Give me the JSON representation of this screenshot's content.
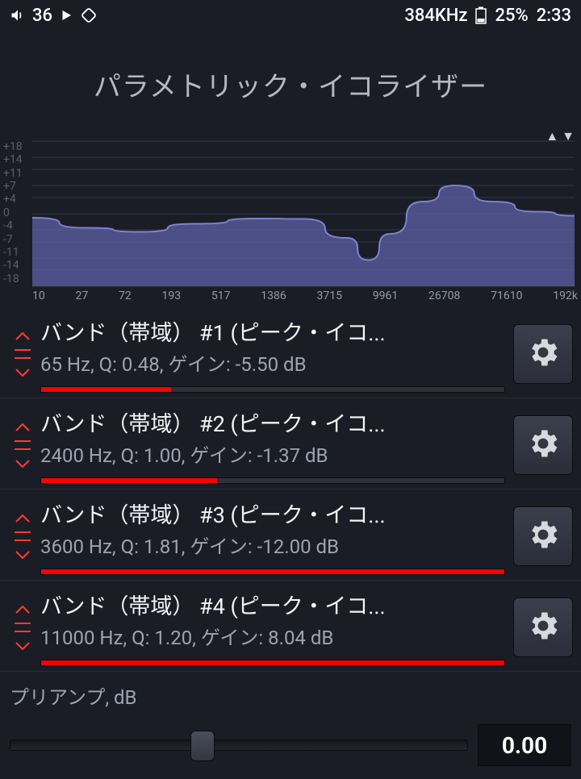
{
  "status": {
    "volume": "36",
    "sample_rate": "384KHz",
    "battery": "25%",
    "time": "2:33"
  },
  "title": "パラメトリック・イコライザー",
  "chart": {
    "type": "area",
    "background_color": "#1a1d26",
    "fill_color": "#5a5ea0",
    "fill_opacity": 0.78,
    "stroke_color": "#7e82d0",
    "grid_color": "#333745",
    "y_label_color": "#5b5f6e",
    "x_label_color": "#969aa6",
    "y_ticks": [
      "+18",
      "+14",
      "+11",
      "+7",
      "+4",
      "0",
      "-4",
      "-7",
      "-11",
      "-14",
      "-18"
    ],
    "x_ticks": [
      "10",
      "27",
      "72",
      "193",
      "517",
      "1386",
      "3715",
      "9961",
      "26708",
      "71610",
      "192k"
    ],
    "ylim": [
      -18,
      18
    ],
    "curve": [
      {
        "x": 0.0,
        "y": -1.0
      },
      {
        "x": 0.1,
        "y": -3.5
      },
      {
        "x": 0.2,
        "y": -4.5
      },
      {
        "x": 0.3,
        "y": -2.5
      },
      {
        "x": 0.42,
        "y": -1.2
      },
      {
        "x": 0.5,
        "y": -1.3
      },
      {
        "x": 0.58,
        "y": -6.0
      },
      {
        "x": 0.62,
        "y": -11.5
      },
      {
        "x": 0.66,
        "y": -5.0
      },
      {
        "x": 0.72,
        "y": 3.0
      },
      {
        "x": 0.78,
        "y": 7.0
      },
      {
        "x": 0.85,
        "y": 3.0
      },
      {
        "x": 0.93,
        "y": 0.5
      },
      {
        "x": 1.0,
        "y": -0.5
      }
    ]
  },
  "bands": [
    {
      "title": "バンド（帯域） #1 (ピーク・イコ...",
      "sub": "65 Hz, Q: 0.48, ゲイン: -5.50 dB",
      "fill_pct": 28
    },
    {
      "title": "バンド（帯域） #2 (ピーク・イコ...",
      "sub": "2400 Hz, Q: 1.00, ゲイン: -1.37 dB",
      "fill_pct": 38
    },
    {
      "title": "バンド（帯域） #3 (ピーク・イコ...",
      "sub": "3600 Hz, Q: 1.81, ゲイン: -12.00 dB",
      "fill_pct": 100
    },
    {
      "title": "バンド（帯域） #4 (ピーク・イコ...",
      "sub": "11000 Hz, Q: 1.20, ゲイン: 8.04 dB",
      "fill_pct": 100
    }
  ],
  "preamp": {
    "label": "プリアンプ, dB",
    "value": "0.00",
    "slider_pct": 42
  },
  "colors": {
    "band_bar_fill": "#ff0000",
    "band_bar_bg": "#2e313c",
    "gear_icon": "#d8d9de"
  }
}
